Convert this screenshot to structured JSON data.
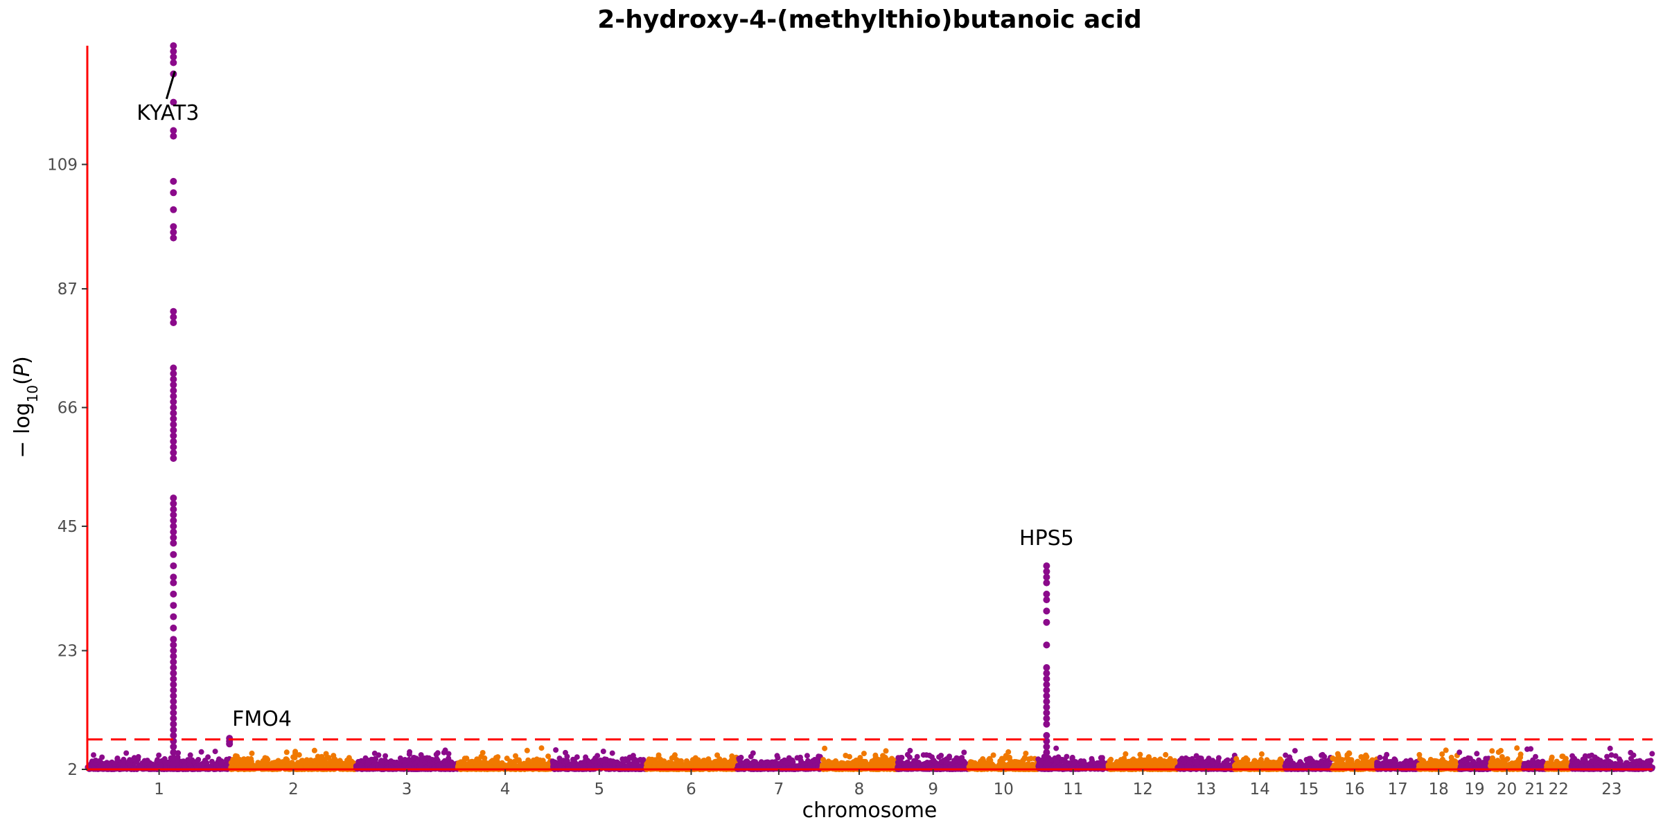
{
  "chart_data": {
    "type": "scatter",
    "title": "2-hydroxy-4-(methylthio)butanoic acid",
    "xlabel": "chromosome",
    "ylabel": "-log10(P)",
    "yticks": [
      2,
      23,
      45,
      66,
      87,
      109
    ],
    "ylim": [
      2,
      130
    ],
    "significance_threshold": 7.3,
    "grid": false,
    "colors": {
      "odd": "#8b0a8b",
      "even": "#f07800",
      "axis": "#ff0000",
      "threshold": "#ff0000"
    },
    "chromosomes": [
      {
        "label": "1",
        "start": 0,
        "end": 1000
      },
      {
        "label": "2",
        "start": 1000,
        "end": 1870
      },
      {
        "label": "3",
        "start": 1870,
        "end": 2580
      },
      {
        "label": "4",
        "start": 2580,
        "end": 3240
      },
      {
        "label": "5",
        "start": 3240,
        "end": 3890
      },
      {
        "label": "6",
        "start": 3890,
        "end": 4520
      },
      {
        "label": "7",
        "start": 4520,
        "end": 5110
      },
      {
        "label": "8",
        "start": 5110,
        "end": 5640
      },
      {
        "label": "9",
        "start": 5640,
        "end": 6140
      },
      {
        "label": "10",
        "start": 6140,
        "end": 6620
      },
      {
        "label": "11",
        "start": 6620,
        "end": 7110
      },
      {
        "label": "12",
        "start": 7110,
        "end": 7590
      },
      {
        "label": "13",
        "start": 7590,
        "end": 7990
      },
      {
        "label": "14",
        "start": 7990,
        "end": 8340
      },
      {
        "label": "15",
        "start": 8340,
        "end": 8670
      },
      {
        "label": "16",
        "start": 8670,
        "end": 8980
      },
      {
        "label": "17",
        "start": 8980,
        "end": 9270
      },
      {
        "label": "18",
        "start": 9270,
        "end": 9550
      },
      {
        "label": "19",
        "start": 9550,
        "end": 9770
      },
      {
        "label": "20",
        "start": 9770,
        "end": 10000
      },
      {
        "label": "21",
        "start": 10000,
        "end": 10160
      },
      {
        "label": "22",
        "start": 10160,
        "end": 10330
      },
      {
        "label": "23",
        "start": 10330,
        "end": 10900
      }
    ],
    "peaks": [
      {
        "gene": "KYAT3",
        "chromosome": "1",
        "pos": 600,
        "values": [
          3,
          4,
          5,
          6,
          7,
          8,
          9,
          10,
          11,
          12,
          13,
          14,
          15,
          16,
          17,
          18,
          19,
          20,
          21,
          22,
          23,
          24,
          25,
          27,
          29,
          31,
          33,
          35,
          36,
          38,
          40,
          42,
          43,
          44,
          45,
          46,
          47,
          48,
          49,
          50,
          57,
          58,
          59,
          60,
          61,
          62,
          63,
          64,
          65,
          66,
          67,
          68,
          69,
          70,
          71,
          72,
          73,
          81,
          82,
          83,
          96,
          97,
          98,
          101,
          104,
          106,
          114,
          115,
          120,
          125,
          127,
          128,
          129,
          130
        ]
      },
      {
        "gene": "FMO4",
        "chromosome": "1",
        "pos": 990,
        "values": [
          6.5,
          7.0,
          7.5
        ]
      },
      {
        "gene": "HPS5",
        "chromosome": "11",
        "pos": 6680,
        "values": [
          3,
          4,
          5,
          6,
          7,
          8,
          10,
          11,
          12,
          13,
          14,
          15,
          16,
          17,
          18,
          19,
          20,
          24,
          28,
          30,
          32,
          33,
          35,
          36,
          37,
          38
        ]
      }
    ],
    "annotations": [
      {
        "text": "KYAT3",
        "x": 600,
        "y": 125
      },
      {
        "text": "FMO4",
        "x": 990,
        "y": 9.5
      },
      {
        "text": "HPS5",
        "x": 6680,
        "y": 40
      }
    ]
  }
}
